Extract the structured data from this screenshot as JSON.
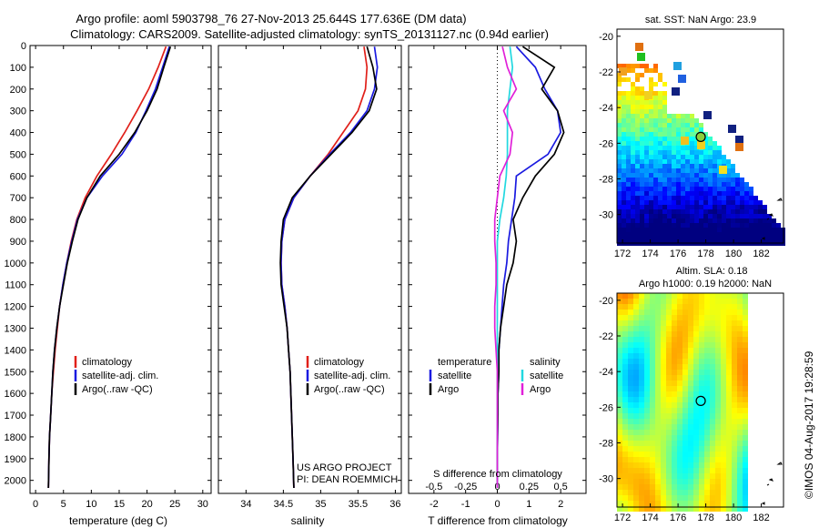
{
  "header": {
    "line1": "Argo profile: aoml 5903798_76 27-Nov-2013 25.644S 177.636E (DM data)",
    "line2": "Climatology: CARS2009. Satellite-adjusted climatology: synTS_20131127.nc (0.94d earlier)"
  },
  "colors": {
    "climatology": "#e0201a",
    "satellite": "#1a1ae0",
    "argo": "#000000",
    "salinity_satellite": "#22d8e0",
    "salinity_argo": "#e020d8",
    "map_marker": "#8ecf3a"
  },
  "chart_data": [
    {
      "type": "line",
      "xlabel": "temperature (deg C)",
      "ylabel": "",
      "xticks": [
        0,
        5,
        10,
        15,
        20,
        25,
        30
      ],
      "xlim": [
        -1,
        31.5
      ],
      "yticks": [
        0,
        100,
        200,
        300,
        400,
        500,
        600,
        700,
        800,
        900,
        1000,
        1100,
        1200,
        1300,
        1400,
        1500,
        1600,
        1700,
        1800,
        1900,
        2000
      ],
      "ylim": [
        0,
        2060
      ],
      "y_reversed": true,
      "legend": [
        "climatology",
        "satellite-adj. clim.",
        "Argo(..raw -QC)"
      ],
      "series": [
        {
          "name": "climatology",
          "color": "#e0201a",
          "x": [
            23.4,
            22,
            20.3,
            18.2,
            16,
            13.6,
            11,
            8.9,
            7.4,
            6.4,
            5.6,
            4.9,
            4.3,
            3.9,
            3.5,
            3.2,
            2.9,
            2.7,
            2.5,
            2.4,
            2.3
          ],
          "y": [
            5,
            100,
            200,
            300,
            400,
            500,
            600,
            700,
            800,
            900,
            1000,
            1100,
            1200,
            1300,
            1400,
            1500,
            1600,
            1700,
            1800,
            1900,
            2035
          ]
        },
        {
          "name": "satellite-adj. clim.",
          "color": "#1a1ae0",
          "x": [
            24,
            22.8,
            21.5,
            19.8,
            18,
            15.5,
            12,
            9.2,
            7.5,
            6.5,
            5.6,
            4.9,
            4.3,
            3.8,
            3.4,
            3.1,
            2.9,
            2.7,
            2.5,
            2.4,
            2.3
          ],
          "y": [
            5,
            100,
            200,
            300,
            400,
            500,
            600,
            700,
            800,
            900,
            1000,
            1100,
            1200,
            1300,
            1400,
            1500,
            1600,
            1700,
            1800,
            1900,
            2035
          ]
        },
        {
          "name": "Argo(..raw -QC)",
          "color": "#000000",
          "x": [
            24.2,
            23,
            21.8,
            20,
            17.8,
            15,
            11.6,
            9.2,
            7.6,
            6.6,
            5.7,
            5,
            4.3,
            3.8,
            3.4,
            3.1,
            2.9,
            2.7,
            2.5,
            2.4,
            2.3
          ],
          "y": [
            5,
            100,
            200,
            300,
            400,
            500,
            600,
            700,
            800,
            900,
            1000,
            1100,
            1200,
            1300,
            1400,
            1500,
            1600,
            1700,
            1800,
            1900,
            2035
          ]
        }
      ]
    },
    {
      "type": "line",
      "xlabel": "salinity",
      "ylabel": "",
      "xticks": [
        34,
        34.5,
        35,
        35.5,
        36
      ],
      "xlim": [
        33.63,
        36.08
      ],
      "ylim": [
        0,
        2060
      ],
      "y_reversed": true,
      "legend": [
        "climatology",
        "satellite-adj. clim.",
        "Argo(..raw -QC)"
      ],
      "annotations": [
        "US ARGO PROJECT",
        "PI: DEAN ROEMMICH"
      ],
      "series": [
        {
          "name": "climatology",
          "color": "#e0201a",
          "x": [
            35.58,
            35.62,
            35.6,
            35.5,
            35.3,
            35.1,
            34.86,
            34.64,
            34.52,
            34.48,
            34.47,
            34.48,
            34.52,
            34.55,
            34.57,
            34.59,
            34.6,
            34.61,
            34.62,
            34.63,
            34.64
          ],
          "y": [
            5,
            100,
            200,
            300,
            400,
            500,
            600,
            700,
            800,
            900,
            1000,
            1100,
            1200,
            1300,
            1400,
            1500,
            1600,
            1700,
            1800,
            1900,
            2035
          ]
        },
        {
          "name": "satellite-adj. clim.",
          "color": "#1a1ae0",
          "x": [
            35.72,
            35.76,
            35.72,
            35.62,
            35.4,
            35.12,
            34.86,
            34.64,
            34.52,
            34.48,
            34.47,
            34.48,
            34.52,
            34.55,
            34.57,
            34.59,
            34.6,
            34.61,
            34.62,
            34.63,
            34.64
          ],
          "y": [
            5,
            100,
            200,
            300,
            400,
            500,
            600,
            700,
            800,
            900,
            1000,
            1100,
            1200,
            1300,
            1400,
            1500,
            1600,
            1700,
            1800,
            1900,
            2035
          ]
        },
        {
          "name": "Argo(..raw -QC)",
          "color": "#000000",
          "x": [
            35.62,
            35.7,
            35.75,
            35.65,
            35.42,
            35.14,
            34.86,
            34.62,
            34.5,
            34.47,
            34.46,
            34.47,
            34.51,
            34.55,
            34.57,
            34.59,
            34.6,
            34.61,
            34.62,
            34.63,
            34.64
          ],
          "y": [
            5,
            100,
            200,
            300,
            400,
            500,
            600,
            700,
            800,
            900,
            1000,
            1100,
            1200,
            1300,
            1400,
            1500,
            1600,
            1700,
            1800,
            1900,
            2035
          ]
        }
      ]
    },
    {
      "type": "line",
      "xlabel": "T difference from climatology",
      "xlabel_top": "S difference from climatology",
      "xticks": [
        -2,
        -1,
        0,
        1,
        2
      ],
      "xlim": [
        -2.8,
        2.8
      ],
      "xticks_top": [
        -0.5,
        -0.25,
        0,
        0.25,
        0.5
      ],
      "xlim_top": [
        -0.7,
        0.7
      ],
      "ylim": [
        0,
        2060
      ],
      "y_reversed": true,
      "zero_line": "dotted",
      "legend_headers": [
        "temperature",
        "salinity"
      ],
      "legend": [
        "satellite",
        "Argo",
        "satellite",
        "Argo"
      ],
      "series": [
        {
          "name": "satellite",
          "color": "#1a1ae0",
          "kind": "temperature",
          "x": [
            0.6,
            1.2,
            1.5,
            1.9,
            2,
            1.6,
            0.6,
            0.55,
            0.45,
            0.35,
            0.3,
            0.2,
            0.15,
            0.1,
            0.05,
            0.05,
            0.02,
            0.02,
            0.01,
            0,
            0
          ],
          "y": [
            5,
            100,
            200,
            300,
            400,
            500,
            600,
            700,
            800,
            900,
            1000,
            1100,
            1200,
            1300,
            1400,
            1500,
            1600,
            1700,
            1800,
            1900,
            2035
          ]
        },
        {
          "name": "Argo",
          "color": "#000000",
          "kind": "temperature",
          "x": [
            0.8,
            1.8,
            1.4,
            1.9,
            2.1,
            1.8,
            1.2,
            0.8,
            0.5,
            0.6,
            0.5,
            0.3,
            0.2,
            0.1,
            0.05,
            0.05,
            0.02,
            0.02,
            0.01,
            0,
            0
          ],
          "y": [
            5,
            100,
            200,
            300,
            400,
            500,
            600,
            700,
            800,
            900,
            1000,
            1100,
            1200,
            1300,
            1400,
            1500,
            1600,
            1700,
            1800,
            1900,
            2035
          ]
        },
        {
          "name": "satellite",
          "color": "#22d8e0",
          "kind": "salinity",
          "x": [
            0.1,
            0.12,
            0.1,
            0.08,
            0.08,
            0.08,
            0.07,
            0.05,
            0.02,
            0,
            0,
            0,
            0,
            0,
            0,
            0,
            0,
            0,
            0,
            0,
            0
          ],
          "y": [
            5,
            100,
            200,
            300,
            400,
            500,
            600,
            700,
            800,
            900,
            1000,
            1100,
            1200,
            1300,
            1400,
            1500,
            1600,
            1700,
            1800,
            1900,
            2035
          ]
        },
        {
          "name": "Argo",
          "color": "#e020d8",
          "kind": "salinity",
          "x": [
            0.04,
            0.08,
            0.15,
            0.05,
            0.12,
            0.1,
            0.02,
            0,
            -0.02,
            -0.02,
            -0.01,
            -0.01,
            -0.02,
            -0.02,
            -0.01,
            0,
            0,
            0,
            0,
            0,
            0
          ],
          "y": [
            5,
            100,
            200,
            300,
            400,
            500,
            600,
            700,
            800,
            900,
            1000,
            1100,
            1200,
            1300,
            1400,
            1500,
            1600,
            1700,
            1800,
            1900,
            2035
          ]
        }
      ]
    },
    {
      "type": "heatmap",
      "title": "sat. SST: NaN Argo: 23.9",
      "xticks": [
        172,
        174,
        176,
        178,
        180,
        182
      ],
      "yticks": [
        -20,
        -22,
        -24,
        -26,
        -28,
        -30
      ],
      "xlim": [
        171.6,
        183.6
      ],
      "ylim": [
        -31.6,
        -19.6
      ],
      "marker": [
        177.636,
        -25.644
      ]
    },
    {
      "type": "heatmap",
      "title": "Altim. SLA: 0.18",
      "subtitle": "Argo h1000: 0.19 h2000: NaN",
      "xticks": [
        172,
        174,
        176,
        178,
        180,
        182
      ],
      "yticks": [
        -20,
        -22,
        -24,
        -26,
        -28,
        -30
      ],
      "xlim": [
        171.6,
        183.6
      ],
      "ylim": [
        -31.6,
        -19.6
      ],
      "marker": [
        177.636,
        -25.644
      ]
    }
  ],
  "footer": {
    "credit": "©IMOS 04-Aug-2017 19:28:59"
  }
}
